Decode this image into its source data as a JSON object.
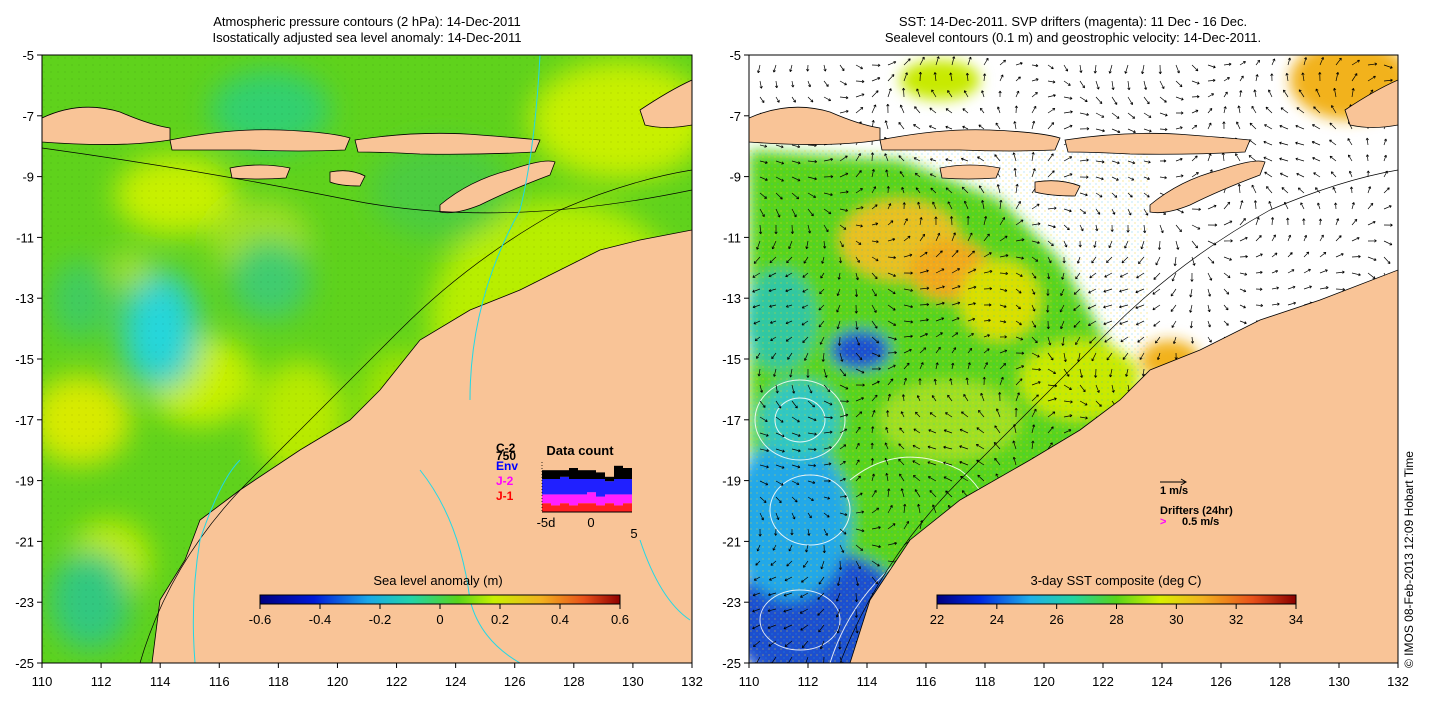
{
  "left_panel": {
    "title_line1": "Atmospheric pressure contours (2 hPa): 14-Dec-2011",
    "title_line2": "Isostatically adjusted sea level anomaly: 14-Dec-2011",
    "x_ticks": [
      "110",
      "112",
      "114",
      "116",
      "118",
      "120",
      "122",
      "124",
      "126",
      "128",
      "130",
      "132"
    ],
    "y_ticks": [
      "-5",
      "-7",
      "-9",
      "-11",
      "-13",
      "-15",
      "-17",
      "-19",
      "-21",
      "-23",
      "-25"
    ],
    "colorbar": {
      "label": "Sea level anomaly (m)",
      "ticks": [
        "-0.6",
        "-0.4",
        "-0.2",
        "0",
        "0.2",
        "0.4",
        "0.6"
      ]
    },
    "data_count": {
      "title": "Data count",
      "legend": [
        {
          "label": "C-2",
          "color": "#000000"
        },
        {
          "label": "750",
          "color": "#000000"
        },
        {
          "label": "Env",
          "color": "#0000ff"
        },
        {
          "label": "J-2",
          "color": "#ff00ff"
        },
        {
          "label": "J-1",
          "color": "#ff0000"
        }
      ],
      "axis_labels": [
        "-5d",
        "0",
        "5"
      ],
      "bars": [
        {
          "red": 4,
          "magenta": 4,
          "blue": 7,
          "black": 4
        },
        {
          "red": 3,
          "magenta": 5,
          "blue": 7,
          "black": 4
        },
        {
          "red": 4,
          "magenta": 4,
          "blue": 8,
          "black": 3
        },
        {
          "red": 3,
          "magenta": 5,
          "blue": 7,
          "black": 5
        },
        {
          "red": 4,
          "magenta": 4,
          "blue": 7,
          "black": 4
        },
        {
          "red": 4,
          "magenta": 5,
          "blue": 6,
          "black": 4
        },
        {
          "red": 3,
          "magenta": 4,
          "blue": 8,
          "black": 3
        },
        {
          "red": 4,
          "magenta": 4,
          "blue": 6,
          "black": 2
        },
        {
          "red": 3,
          "magenta": 5,
          "blue": 7,
          "black": 6
        },
        {
          "red": 4,
          "magenta": 4,
          "blue": 7,
          "black": 5
        }
      ]
    }
  },
  "right_panel": {
    "title_line1": "SST: 14-Dec-2011. SVP drifters (magenta): 11 Dec - 16 Dec.",
    "title_line2": "Sealevel contours (0.1 m) and geostrophic velocity: 14-Dec-2011.",
    "x_ticks": [
      "110",
      "112",
      "114",
      "116",
      "118",
      "120",
      "122",
      "124",
      "126",
      "128",
      "130",
      "132"
    ],
    "y_ticks": [
      "-5",
      "-7",
      "-9",
      "-11",
      "-13",
      "-15",
      "-17",
      "-19",
      "-21",
      "-23",
      "-25"
    ],
    "colorbar": {
      "label": "3-day SST composite (deg C)",
      "ticks": [
        "22",
        "24",
        "26",
        "28",
        "30",
        "32",
        "34"
      ]
    },
    "velocity_scale": "1 m/s",
    "drifters_label": "Drifters (24hr)",
    "drifter_scale": "0.5 m/s",
    "drifter_marker": ">"
  },
  "credit": "© IMOS 08-Feb-2013 12:09 Hobart Time",
  "colors": {
    "land": "#f9c497",
    "slmap_base": "#63d21a",
    "slmap_yellow": "#c8f000",
    "slmap_cyan": "#36d6bf",
    "sst_cold": "#1a4fcf",
    "sst_mid": "#4fd41a",
    "sst_warm": "#f2b21f",
    "coastline": "#000000",
    "depth_contour": "#22d8e6",
    "drifter": "#ff00ff"
  }
}
